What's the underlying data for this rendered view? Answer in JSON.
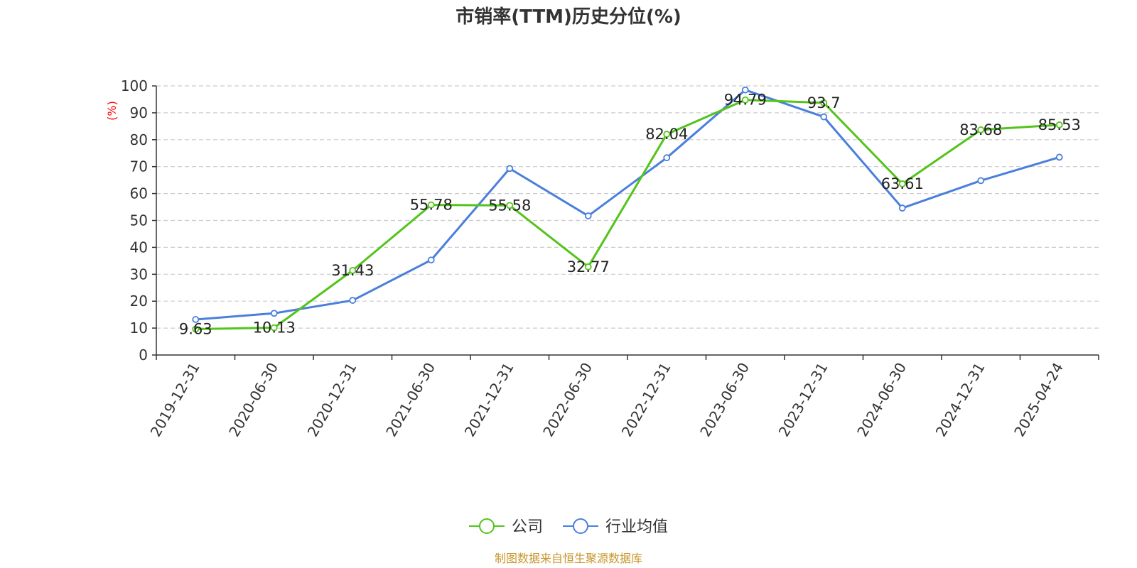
{
  "chart_data": {
    "type": "line",
    "title": "市销率(TTM)历史分位(%)",
    "ylabel": "(%)",
    "xlabel": "",
    "ylim": [
      0,
      100
    ],
    "y_ticks": [
      "0",
      "10",
      "20",
      "30",
      "40",
      "50",
      "60",
      "70",
      "80",
      "90",
      "100"
    ],
    "categories": [
      "2019-12-31",
      "2020-06-30",
      "2020-12-31",
      "2021-06-30",
      "2021-12-31",
      "2022-06-30",
      "2022-12-31",
      "2023-06-30",
      "2023-12-31",
      "2024-06-30",
      "2024-12-31",
      "2025-04-24"
    ],
    "grid": true,
    "legend_position": "bottom",
    "series": [
      {
        "name": "公司",
        "color": "#52c41a",
        "values": [
          9.63,
          10.13,
          31.43,
          55.78,
          55.58,
          32.77,
          82.04,
          94.79,
          93.7,
          63.61,
          83.68,
          85.53
        ],
        "labels": [
          "9.63",
          "10.13",
          "31.43",
          "55.78",
          "55.58",
          "32.77",
          "82.04",
          "94.79",
          "93.7",
          "63.61",
          "83.68",
          "85.53"
        ]
      },
      {
        "name": "行业均值",
        "color": "#4a7fdc",
        "values": [
          13.2,
          15.5,
          20.3,
          35.3,
          69.3,
          51.7,
          73.3,
          98.5,
          88.5,
          54.6,
          64.8,
          73.5
        ]
      }
    ]
  },
  "footer": {
    "source_text": "制图数据来自恒生聚源数据库"
  }
}
